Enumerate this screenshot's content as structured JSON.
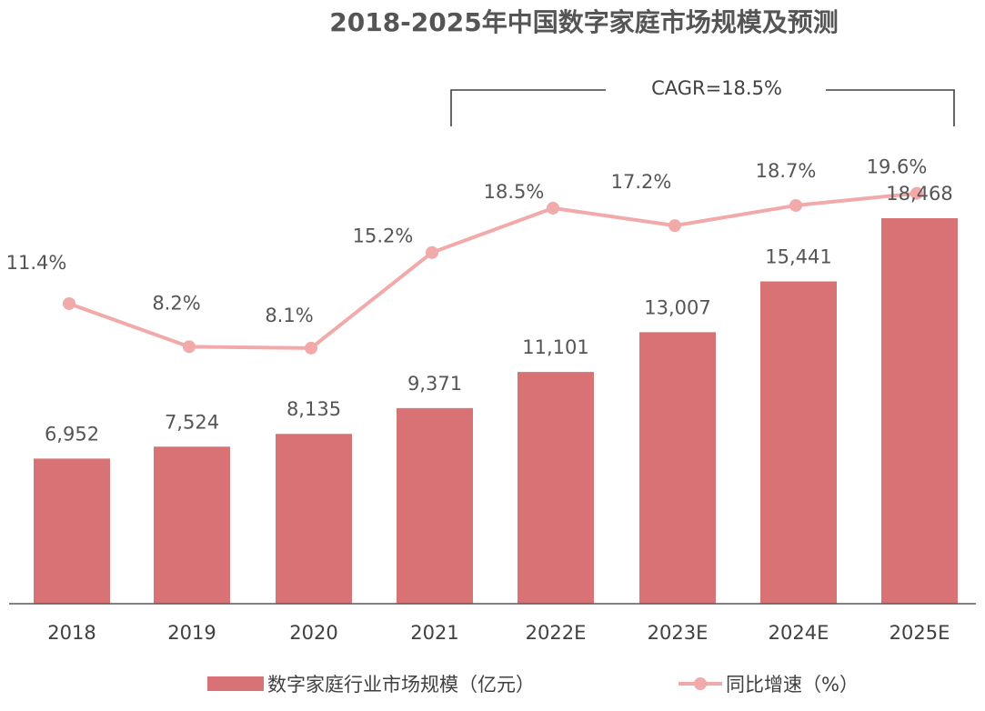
{
  "chart_data": {
    "type": "bar",
    "title": "2018-2025年中国数字家庭市场规模及预测",
    "categories": [
      "2018",
      "2019",
      "2020",
      "2021",
      "2022E",
      "2023E",
      "2024E",
      "2025E"
    ],
    "series": [
      {
        "name": "数字家庭行业市场规模（亿元）",
        "type": "bar",
        "values": [
          6952,
          7524,
          8135,
          9371,
          11101,
          13007,
          15441,
          18468
        ],
        "labels": [
          "6,952",
          "7,524",
          "8,135",
          "9,371",
          "11,101",
          "13,007",
          "15,441",
          "18,468"
        ],
        "color": "#d87274"
      },
      {
        "name": "同比增速（%）",
        "type": "line",
        "values": [
          11.4,
          8.2,
          8.1,
          15.2,
          18.5,
          17.2,
          18.7,
          19.6
        ],
        "labels": [
          "11.4%",
          "8.2%",
          "8.1%",
          "15.2%",
          "18.5%",
          "17.2%",
          "18.7%",
          "19.6%"
        ],
        "color": "#f2a9aa"
      }
    ],
    "annotation": "CAGR=18.5%",
    "grid": false,
    "legend_position": "bottom"
  }
}
